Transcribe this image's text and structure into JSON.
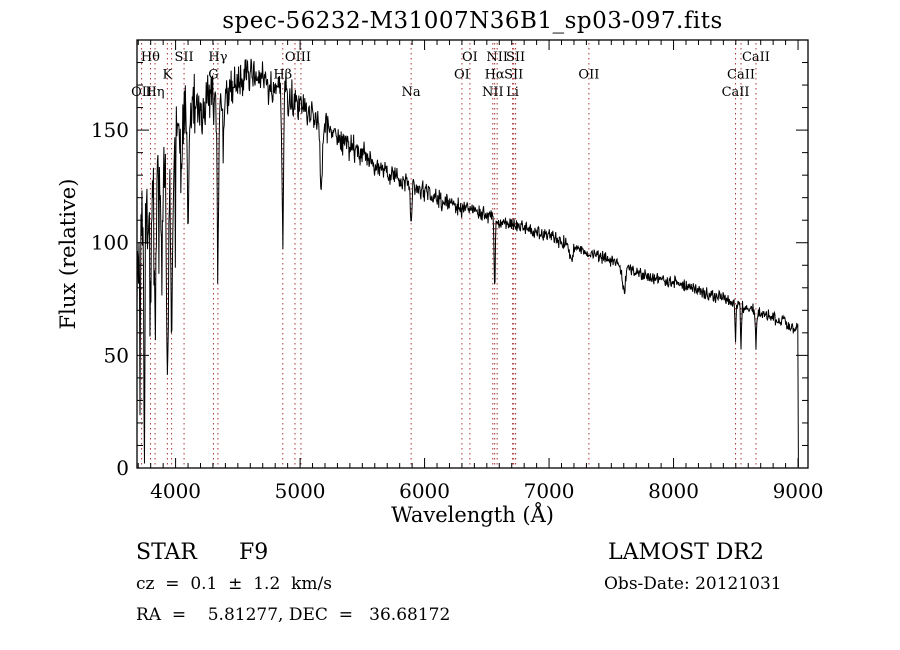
{
  "title": "spec-56232-M31007N36B1_sp03-097.fits",
  "footer": {
    "class_line": "STAR      F9",
    "survey": "LAMOST DR2",
    "cz_line": "cz  =  0.1  ±  1.2  km/s",
    "obsdate_line": "Obs-Date: 20121031",
    "radec_line": "RA  =    5.81277, DEC  =   36.68172"
  },
  "chart_data": {
    "type": "line",
    "title": "spec-56232-M31007N36B1_sp03-097.fits",
    "xlabel": "Wavelength (Å)",
    "ylabel": "Flux (relative)",
    "xlim": [
      3690,
      9080
    ],
    "ylim": [
      0,
      190
    ],
    "x_major_ticks": [
      4000,
      5000,
      6000,
      7000,
      8000,
      9000
    ],
    "x_minor_step": 100,
    "y_major_ticks": [
      0,
      50,
      100,
      150
    ],
    "y_minor_step": 10,
    "grid": false,
    "legend": "none",
    "line_color": "#000000",
    "marker_line_color": "#aa3333",
    "dotted_lines": [
      3727,
      3798,
      3835,
      3934,
      3968,
      4068,
      4304,
      4340,
      4861,
      4959,
      5007,
      5892,
      6300,
      6364,
      6548,
      6563,
      6583,
      6707,
      6716,
      6731,
      7320,
      8498,
      8542,
      8662
    ],
    "line_labels": [
      {
        "text": "Hθ",
        "wavelength": 3798,
        "row": 1
      },
      {
        "text": "SII",
        "wavelength": 4068,
        "row": 1
      },
      {
        "text": "Hγ",
        "wavelength": 4340,
        "row": 1
      },
      {
        "text": "OIII",
        "wavelength": 4983,
        "row": 1
      },
      {
        "text": "OI",
        "wavelength": 6364,
        "row": 1
      },
      {
        "text": "NII",
        "wavelength": 6583,
        "row": 1
      },
      {
        "text": "SII",
        "wavelength": 6731,
        "row": 1
      },
      {
        "text": "CaII",
        "wavelength": 8662,
        "row": 1
      },
      {
        "text": "K",
        "wavelength": 3934,
        "row": 2
      },
      {
        "text": "G",
        "wavelength": 4304,
        "row": 2
      },
      {
        "text": "Hβ",
        "wavelength": 4861,
        "row": 2
      },
      {
        "text": "OI",
        "wavelength": 6300,
        "row": 2
      },
      {
        "text": "Hα",
        "wavelength": 6563,
        "row": 2
      },
      {
        "text": "SII",
        "wavelength": 6716,
        "row": 2
      },
      {
        "text": "OII",
        "wavelength": 7320,
        "row": 2
      },
      {
        "text": "CaII",
        "wavelength": 8542,
        "row": 2
      },
      {
        "text": "OII",
        "wavelength": 3727,
        "row": 3
      },
      {
        "text": "Hη",
        "wavelength": 3835,
        "row": 3
      },
      {
        "text": "Na",
        "wavelength": 5892,
        "row": 3
      },
      {
        "text": "NII",
        "wavelength": 6548,
        "row": 3
      },
      {
        "text": "Li",
        "wavelength": 6707,
        "row": 3
      },
      {
        "text": "CaII",
        "wavelength": 8498,
        "row": 3
      }
    ],
    "continuum": [
      [
        3690,
        92
      ],
      [
        3720,
        102
      ],
      [
        3760,
        112
      ],
      [
        3800,
        122
      ],
      [
        3850,
        128
      ],
      [
        3900,
        134
      ],
      [
        3950,
        140
      ],
      [
        4000,
        150
      ],
      [
        4050,
        154
      ],
      [
        4100,
        157
      ],
      [
        4200,
        161
      ],
      [
        4300,
        164
      ],
      [
        4400,
        167
      ],
      [
        4500,
        171
      ],
      [
        4600,
        173
      ],
      [
        4700,
        172
      ],
      [
        4800,
        170
      ],
      [
        4900,
        166
      ],
      [
        5000,
        161
      ],
      [
        5100,
        156
      ],
      [
        5200,
        151
      ],
      [
        5300,
        147
      ],
      [
        5400,
        143
      ],
      [
        5500,
        139
      ],
      [
        5600,
        135
      ],
      [
        5700,
        131
      ],
      [
        5800,
        128
      ],
      [
        5900,
        125
      ],
      [
        6000,
        123
      ],
      [
        6100,
        120
      ],
      [
        6200,
        118
      ],
      [
        6300,
        116
      ],
      [
        6400,
        114
      ],
      [
        6500,
        112
      ],
      [
        6600,
        110
      ],
      [
        6700,
        108
      ],
      [
        6800,
        107
      ],
      [
        6900,
        105
      ],
      [
        7000,
        103
      ],
      [
        7100,
        100
      ],
      [
        7200,
        98
      ],
      [
        7300,
        96
      ],
      [
        7400,
        94
      ],
      [
        7500,
        92
      ],
      [
        7600,
        89
      ],
      [
        7700,
        87
      ],
      [
        7800,
        85
      ],
      [
        7900,
        84
      ],
      [
        8000,
        83
      ],
      [
        8100,
        81
      ],
      [
        8200,
        79
      ],
      [
        8300,
        77
      ],
      [
        8400,
        75
      ],
      [
        8500,
        73
      ],
      [
        8600,
        71
      ],
      [
        8700,
        69
      ],
      [
        8800,
        67
      ],
      [
        8900,
        64
      ],
      [
        9000,
        62
      ]
    ],
    "absorption_features": [
      {
        "wavelength": 3750,
        "depth": 45,
        "width": 10
      },
      {
        "wavelength": 3798,
        "depth": 50,
        "width": 10
      },
      {
        "wavelength": 3835,
        "depth": 55,
        "width": 10
      },
      {
        "wavelength": 3890,
        "depth": 50,
        "width": 8
      },
      {
        "wavelength": 3934,
        "depth": 95,
        "width": 10
      },
      {
        "wavelength": 3968,
        "depth": 88,
        "width": 10
      },
      {
        "wavelength": 4045,
        "depth": 25,
        "width": 8
      },
      {
        "wavelength": 4101,
        "depth": 50,
        "width": 10
      },
      {
        "wavelength": 4340,
        "depth": 78,
        "width": 9
      },
      {
        "wavelength": 4383,
        "depth": 28,
        "width": 8
      },
      {
        "wavelength": 4861,
        "depth": 70,
        "width": 8
      },
      {
        "wavelength": 5170,
        "depth": 30,
        "width": 12
      },
      {
        "wavelength": 5892,
        "depth": 16,
        "width": 8
      },
      {
        "wavelength": 6563,
        "depth": 32,
        "width": 6
      },
      {
        "wavelength": 7180,
        "depth": 6,
        "width": 15
      },
      {
        "wavelength": 7600,
        "depth": 10,
        "width": 20
      },
      {
        "wavelength": 8498,
        "depth": 16,
        "width": 6
      },
      {
        "wavelength": 8542,
        "depth": 19,
        "width": 6
      },
      {
        "wavelength": 8662,
        "depth": 15,
        "width": 6
      }
    ],
    "noise_profile": [
      [
        3690,
        3900,
        26
      ],
      [
        3900,
        4450,
        13
      ],
      [
        4450,
        5000,
        9
      ],
      [
        5000,
        5600,
        6
      ],
      [
        5600,
        6300,
        4.5
      ],
      [
        6300,
        7200,
        3.2
      ],
      [
        7200,
        8300,
        2.8
      ],
      [
        8300,
        9000,
        2.8
      ]
    ],
    "end_drop_wavelength": 9000
  }
}
